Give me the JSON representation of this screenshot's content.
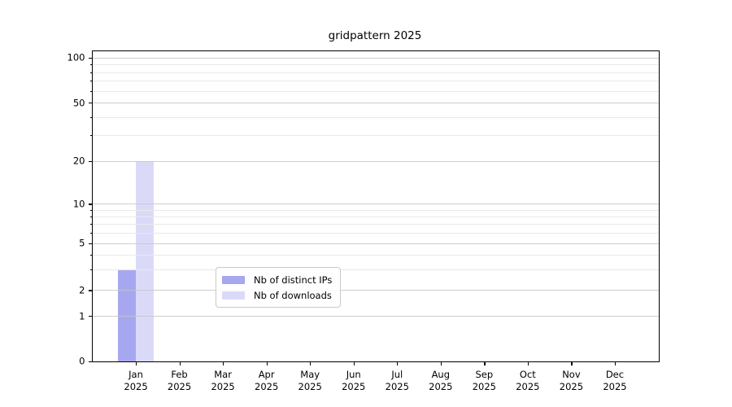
{
  "chart_data": {
    "type": "bar",
    "title": "gridpattern 2025",
    "categories": [
      "Jan",
      "Feb",
      "Mar",
      "Apr",
      "May",
      "Jun",
      "Jul",
      "Aug",
      "Sep",
      "Oct",
      "Nov",
      "Dec"
    ],
    "x_year": "2025",
    "series": [
      {
        "name": "Nb of distinct IPs",
        "color": "#a7a7f0",
        "values": [
          3,
          0,
          0,
          0,
          0,
          0,
          0,
          0,
          0,
          0,
          0,
          0
        ]
      },
      {
        "name": "Nb of downloads",
        "color": "#dadaf8",
        "values": [
          20,
          0,
          0,
          0,
          0,
          0,
          0,
          0,
          0,
          0,
          0,
          0
        ]
      }
    ],
    "xlabel": "",
    "ylabel": "",
    "ylim": [
      0,
      104
    ],
    "y_major_ticks": [
      0,
      1,
      2,
      5,
      10,
      20,
      50,
      100
    ],
    "y_minor_ticks": [
      3,
      4,
      6,
      7,
      8,
      9,
      30,
      40,
      60,
      70,
      80,
      90
    ],
    "scale": "custom log-like (piecewise log between labeled ticks, 0 pinned to baseline)",
    "scale_anchors": [
      [
        0,
        0.0
      ],
      [
        1,
        0.145
      ],
      [
        2,
        0.2286
      ],
      [
        5,
        0.3801
      ],
      [
        10,
        0.5068
      ],
      [
        20,
        0.6447
      ],
      [
        50,
        0.8328
      ],
      [
        100,
        0.9783
      ]
    ],
    "grid": {
      "major_horizontal": true,
      "minor_horizontal": true,
      "vertical": false
    },
    "legend_position": "inside lower-center",
    "colors": {
      "bar_distinct_ips": "#a7a7f0",
      "bar_downloads": "#dadaf8",
      "major_grid": "#c6c6c6",
      "minor_grid": "#e9e9e9",
      "axis": "#000000",
      "background": "#ffffff"
    }
  }
}
